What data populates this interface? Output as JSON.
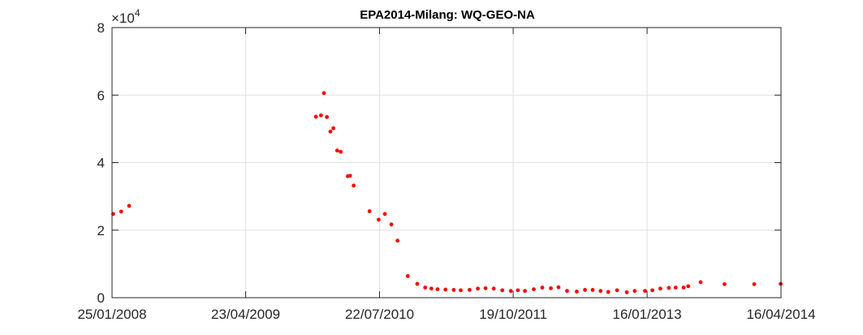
{
  "chart_data": {
    "type": "scatter",
    "title": "EPA2014-Milang: WQ-GEO-NA",
    "xlabel": "",
    "ylabel": "",
    "y_multiplier_base": "×10",
    "y_multiplier_exp": "4",
    "xlim": [
      "2008-01-25",
      "2014-04-16"
    ],
    "ylim": [
      0,
      80000
    ],
    "x_ticks": [
      "2008-01-25",
      "2009-04-23",
      "2010-07-22",
      "2011-10-19",
      "2013-01-16",
      "2014-04-16"
    ],
    "x_tick_labels": [
      "25/01/2008",
      "23/04/2009",
      "22/07/2010",
      "19/10/2011",
      "16/01/2013",
      "16/04/2014"
    ],
    "y_ticks": [
      0,
      20000,
      40000,
      60000,
      80000
    ],
    "y_tick_labels": [
      "0",
      "2",
      "4",
      "6",
      "8"
    ],
    "grid": true,
    "marker_color": "#ff0000",
    "series": [
      {
        "x": [
          "2008-01-29",
          "2008-02-25",
          "2008-03-23",
          "2009-12-18",
          "2010-01-04",
          "2010-01-14",
          "2010-01-24",
          "2010-02-05",
          "2010-02-15",
          "2010-02-28",
          "2010-03-12",
          "2010-04-05",
          "2010-04-13",
          "2010-04-25",
          "2010-06-18",
          "2010-07-19",
          "2010-08-09",
          "2010-08-31",
          "2010-09-21",
          "2010-10-26",
          "2010-11-27",
          "2010-12-24",
          "2011-01-14",
          "2011-02-04",
          "2011-03-03",
          "2011-03-31",
          "2011-04-24",
          "2011-05-24",
          "2011-06-21",
          "2011-07-17",
          "2011-08-14",
          "2011-09-12",
          "2011-10-11",
          "2011-11-04",
          "2011-11-28",
          "2011-12-28",
          "2012-01-26",
          "2012-02-24",
          "2012-03-21",
          "2012-04-19",
          "2012-05-22",
          "2012-06-19",
          "2012-07-15",
          "2012-08-11",
          "2012-09-06",
          "2012-10-06",
          "2012-11-08",
          "2012-12-05",
          "2013-01-09",
          "2013-02-03",
          "2013-03-02",
          "2013-03-31",
          "2013-04-23",
          "2013-05-20",
          "2013-06-05",
          "2013-07-17",
          "2013-10-06",
          "2014-01-15",
          "2014-04-15"
        ],
        "y": [
          24800,
          25500,
          27200,
          53600,
          54000,
          60600,
          53500,
          49200,
          50200,
          43600,
          43200,
          36000,
          36100,
          33200,
          25600,
          23100,
          24800,
          21700,
          16900,
          6400,
          4100,
          3000,
          2700,
          2500,
          2400,
          2300,
          2200,
          2300,
          2700,
          2800,
          2700,
          2200,
          2000,
          2200,
          2000,
          2500,
          3000,
          2800,
          3100,
          2000,
          1800,
          2300,
          2300,
          2000,
          1700,
          2200,
          1600,
          2000,
          2000,
          2200,
          2700,
          2900,
          3000,
          3000,
          3400,
          4600,
          4000,
          4000,
          4100
        ]
      }
    ]
  }
}
